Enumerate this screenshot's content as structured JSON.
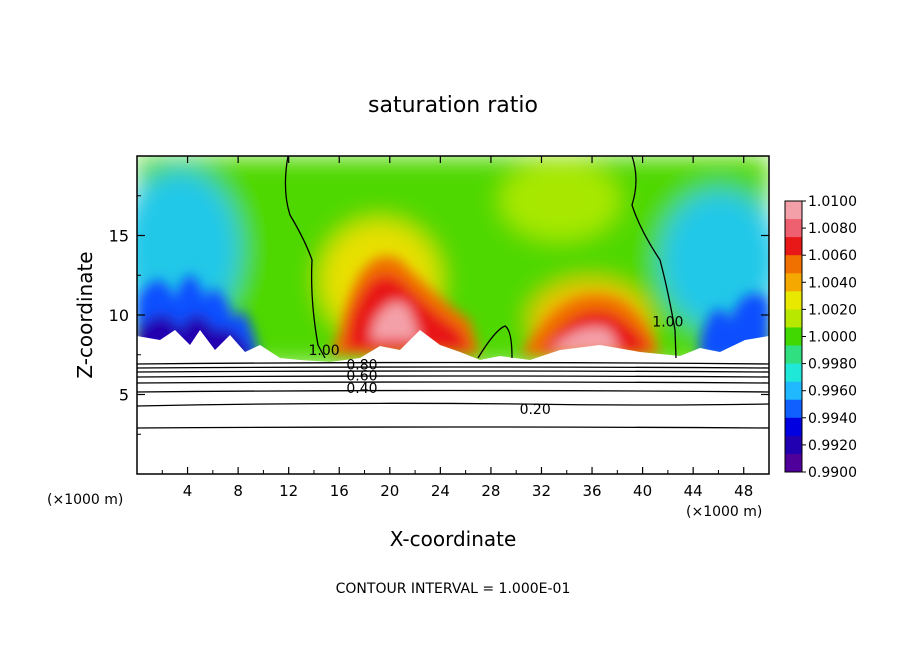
{
  "chart_data": {
    "type": "heatmap",
    "title": "saturation ratio",
    "xlabel": "X-coordinate",
    "ylabel": "Z-coordinate",
    "x_unit_label": "(×1000 m)",
    "x_unit_label_right": "(×1000 m)",
    "footer": "CONTOUR INTERVAL = 1.000E-01",
    "xlim": [
      0,
      50
    ],
    "ylim": [
      0,
      20
    ],
    "x_ticks": [
      4,
      8,
      12,
      16,
      20,
      24,
      28,
      32,
      36,
      40,
      44,
      48
    ],
    "y_ticks": [
      5,
      10,
      15
    ],
    "colorbar": {
      "min": 0.99,
      "max": 1.01,
      "labels": [
        "1.0100",
        "1.0080",
        "1.0060",
        "1.0040",
        "1.0020",
        "1.0000",
        "0.9980",
        "0.9960",
        "0.9940",
        "0.9920",
        "0.9900"
      ],
      "colors": [
        "#f4a0a8",
        "#ee6070",
        "#e81818",
        "#f07000",
        "#f4a800",
        "#e8e800",
        "#b8e800",
        "#40d800",
        "#30e080",
        "#20e8d8",
        "#20b8ff",
        "#1060ff",
        "#0000e0",
        "#2000b0",
        "#50009a"
      ]
    },
    "contour_labels": [
      {
        "text": "1.00",
        "x": 14.8,
        "y": 7.8
      },
      {
        "text": "1.00",
        "x": 42.0,
        "y": 9.6
      },
      {
        "text": "0.80",
        "x": 17.8,
        "y": 6.9
      },
      {
        "text": "0.60",
        "x": 17.8,
        "y": 6.2
      },
      {
        "text": "0.40",
        "x": 17.8,
        "y": 5.4
      },
      {
        "text": "0.20",
        "x": 31.5,
        "y": 4.1
      }
    ]
  }
}
